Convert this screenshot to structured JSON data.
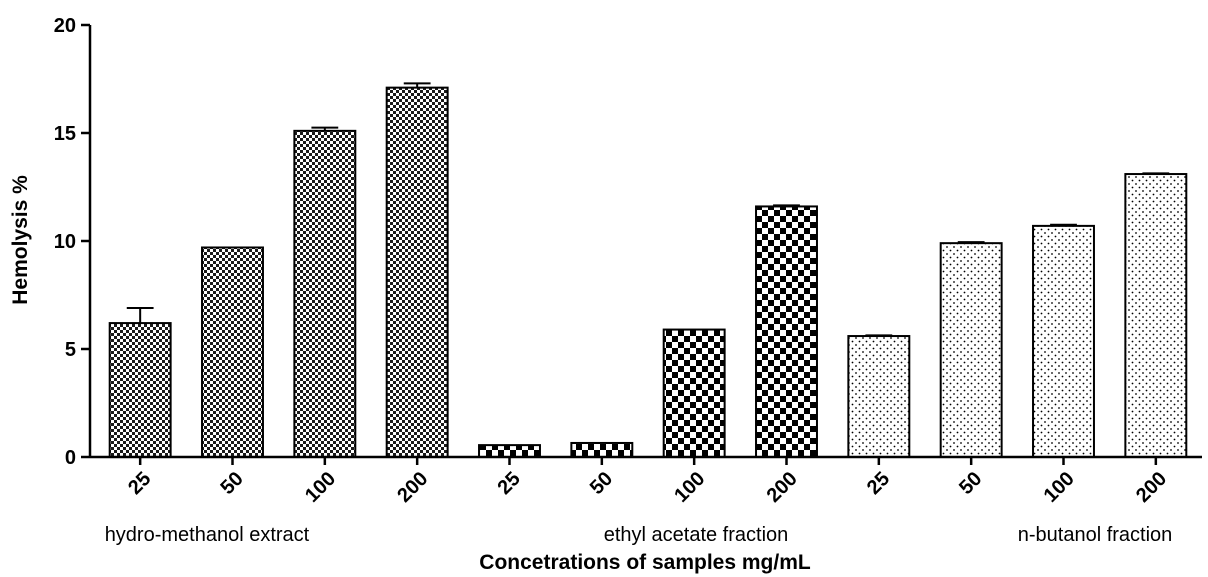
{
  "chart_data": {
    "type": "bar",
    "ylabel": "Hemolysis %",
    "xlabel": "Concetrations of samples mg/mL",
    "ylim": [
      0,
      20
    ],
    "yticks": [
      0,
      5,
      10,
      15,
      20
    ],
    "grid": false,
    "legend": "none",
    "groups": [
      {
        "label": "hydro-methanol extract",
        "pattern": "fine-checker",
        "categories": [
          "25",
          "50",
          "100",
          "200"
        ],
        "values": [
          6.2,
          9.7,
          15.1,
          17.1
        ],
        "errors": [
          0.7,
          0.0,
          0.15,
          0.2
        ]
      },
      {
        "label": "ethyl acetate fraction",
        "pattern": "coarse-checker",
        "categories": [
          "25",
          "50",
          "100",
          "200"
        ],
        "values": [
          0.55,
          0.65,
          5.9,
          11.6
        ],
        "errors": [
          0.0,
          0.0,
          0.0,
          0.05
        ]
      },
      {
        "label": "n-butanol fraction",
        "pattern": "dots",
        "categories": [
          "25",
          "50",
          "100",
          "200"
        ],
        "values": [
          5.6,
          9.9,
          10.7,
          13.1
        ],
        "errors": [
          0.03,
          0.05,
          0.05,
          0.03
        ]
      }
    ],
    "colors": {
      "bar_outline": "#000000",
      "fill_background": "#ffffff",
      "pattern_ink": "#000000"
    }
  }
}
